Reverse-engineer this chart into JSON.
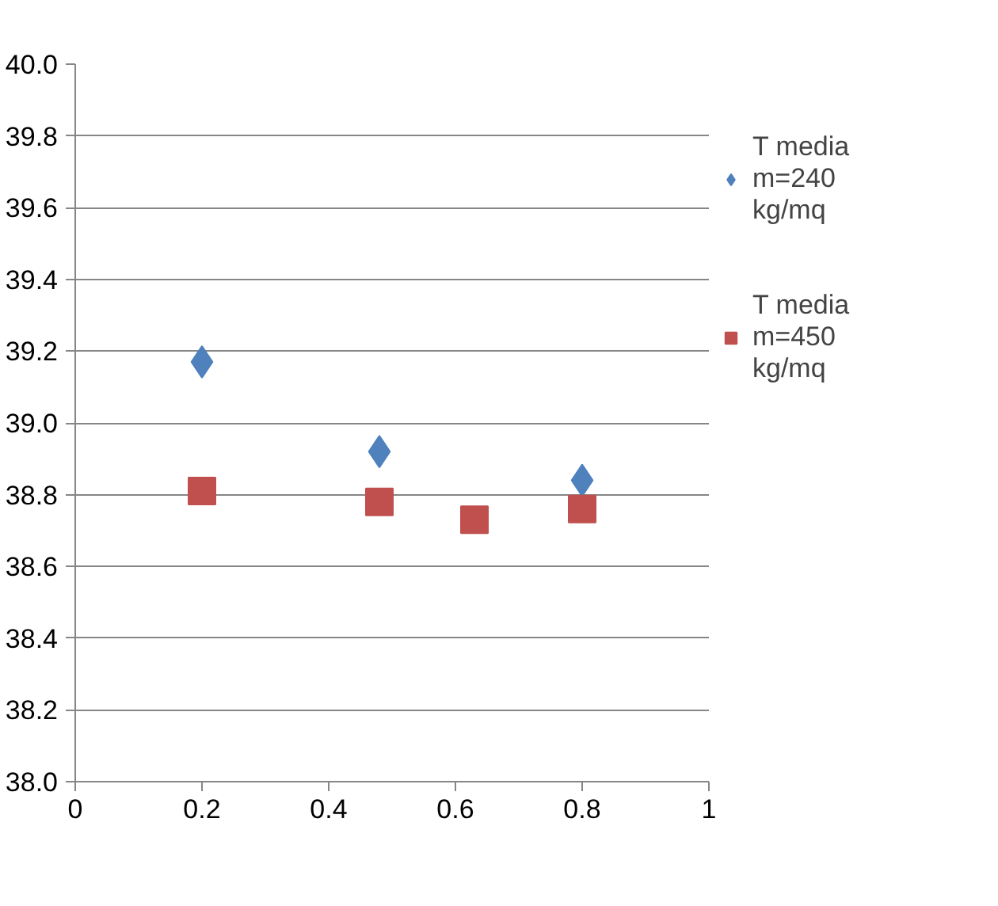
{
  "chart_data": {
    "type": "scatter",
    "series": [
      {
        "name": "T media m=240 kg/mq",
        "color": "#4f81bd",
        "marker": "diamond",
        "x": [
          0.2,
          0.48,
          0.8
        ],
        "values": [
          39.17,
          38.92,
          38.84
        ]
      },
      {
        "name": "T media m=450 kg/mq",
        "color": "#c0504d",
        "marker": "square",
        "x": [
          0.2,
          0.48,
          0.63,
          0.8
        ],
        "values": [
          38.81,
          38.78,
          38.73,
          38.76
        ]
      }
    ],
    "xlim": [
      0,
      1
    ],
    "xticks": [
      0,
      0.2,
      0.4,
      0.6,
      0.8,
      1
    ],
    "ylim": [
      38.0,
      40.0
    ],
    "yticks": [
      {
        "value": 38.0,
        "label": "38.0"
      },
      {
        "value": 38.2,
        "label": "38.2"
      },
      {
        "value": 38.4,
        "label": "38.4"
      },
      {
        "value": 38.6,
        "label": "38.6"
      },
      {
        "value": 38.8,
        "label": "38.8"
      },
      {
        "value": 39.0,
        "label": "39.0"
      },
      {
        "value": 39.2,
        "label": "39.2"
      },
      {
        "value": 39.4,
        "label": "39.4"
      },
      {
        "value": 39.6,
        "label": "39.6"
      },
      {
        "value": 39.8,
        "label": "39.8"
      },
      {
        "value": 40.0,
        "label": "40.0"
      }
    ],
    "grid": "y",
    "legend": "right"
  }
}
